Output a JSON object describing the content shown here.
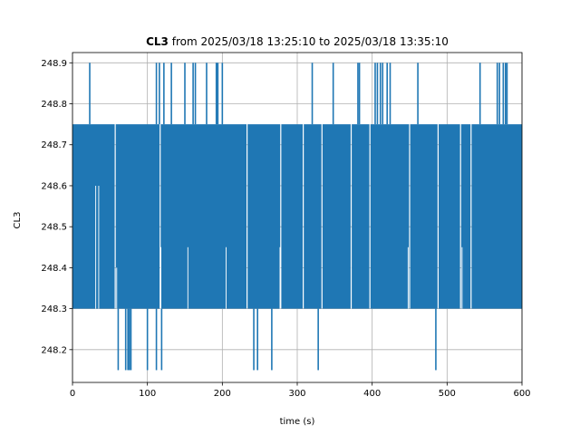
{
  "chart_data": {
    "type": "line",
    "title_bold": "CL3",
    "title_rest": " from 2025/03/18 13:25:10 to 2025/03/18 13:35:10",
    "xlabel": "time (s)",
    "ylabel": "CL3",
    "xlim": [
      0,
      600
    ],
    "ylim": [
      248.12,
      248.925
    ],
    "grid": true,
    "x_ticks": [
      0,
      100,
      200,
      300,
      400,
      500,
      600
    ],
    "x_tick_labels": [
      "0",
      "100",
      "200",
      "300",
      "400",
      "500",
      "600"
    ],
    "y_ticks": [
      248.2,
      248.3,
      248.4,
      248.5,
      248.6,
      248.7,
      248.8,
      248.9
    ],
    "y_tick_labels": [
      "248.2",
      "248.3",
      "248.4",
      "248.5",
      "248.6",
      "248.7",
      "248.8",
      "248.9"
    ],
    "series_color": "#1f77b4",
    "band_low": 248.3,
    "band_high": 248.75,
    "gap_x": [
      57,
      117,
      233,
      278,
      308,
      333,
      372,
      397,
      450,
      488,
      518,
      532
    ],
    "spikes_high": [
      {
        "x": 23,
        "y": 248.9
      },
      {
        "x": 112,
        "y": 248.9
      },
      {
        "x": 116,
        "y": 248.9
      },
      {
        "x": 122,
        "y": 248.9
      },
      {
        "x": 132,
        "y": 248.9
      },
      {
        "x": 150,
        "y": 248.9
      },
      {
        "x": 161,
        "y": 248.9
      },
      {
        "x": 164,
        "y": 248.9
      },
      {
        "x": 179,
        "y": 248.9
      },
      {
        "x": 192,
        "y": 248.9
      },
      {
        "x": 194,
        "y": 248.9
      },
      {
        "x": 200,
        "y": 248.9
      },
      {
        "x": 320,
        "y": 248.9
      },
      {
        "x": 348,
        "y": 248.9
      },
      {
        "x": 381,
        "y": 248.9
      },
      {
        "x": 383,
        "y": 248.9
      },
      {
        "x": 404,
        "y": 248.9
      },
      {
        "x": 407,
        "y": 248.9
      },
      {
        "x": 411,
        "y": 248.9
      },
      {
        "x": 414,
        "y": 248.9
      },
      {
        "x": 420,
        "y": 248.9
      },
      {
        "x": 424,
        "y": 248.9
      },
      {
        "x": 461,
        "y": 248.9
      },
      {
        "x": 544,
        "y": 248.9
      },
      {
        "x": 567,
        "y": 248.9
      },
      {
        "x": 570,
        "y": 248.9
      },
      {
        "x": 575,
        "y": 248.9
      },
      {
        "x": 578,
        "y": 248.9
      },
      {
        "x": 580,
        "y": 248.9
      }
    ],
    "spikes_low": [
      {
        "x": 61,
        "y": 248.15
      },
      {
        "x": 71,
        "y": 248.15
      },
      {
        "x": 74,
        "y": 248.15
      },
      {
        "x": 76,
        "y": 248.15
      },
      {
        "x": 78,
        "y": 248.15
      },
      {
        "x": 100,
        "y": 248.15
      },
      {
        "x": 112,
        "y": 248.15
      },
      {
        "x": 119,
        "y": 248.15
      },
      {
        "x": 242,
        "y": 248.15
      },
      {
        "x": 247,
        "y": 248.15
      },
      {
        "x": 266,
        "y": 248.15
      },
      {
        "x": 328,
        "y": 248.15
      },
      {
        "x": 485,
        "y": 248.15
      }
    ],
    "dips_mid": [
      {
        "x": 31,
        "y": 248.6
      },
      {
        "x": 35,
        "y": 248.6
      },
      {
        "x": 59,
        "y": 248.4
      },
      {
        "x": 118,
        "y": 248.45
      },
      {
        "x": 154,
        "y": 248.45
      },
      {
        "x": 205,
        "y": 248.45
      },
      {
        "x": 277,
        "y": 248.45
      },
      {
        "x": 372,
        "y": 248.45
      },
      {
        "x": 448,
        "y": 248.45
      },
      {
        "x": 520,
        "y": 248.45
      }
    ]
  }
}
